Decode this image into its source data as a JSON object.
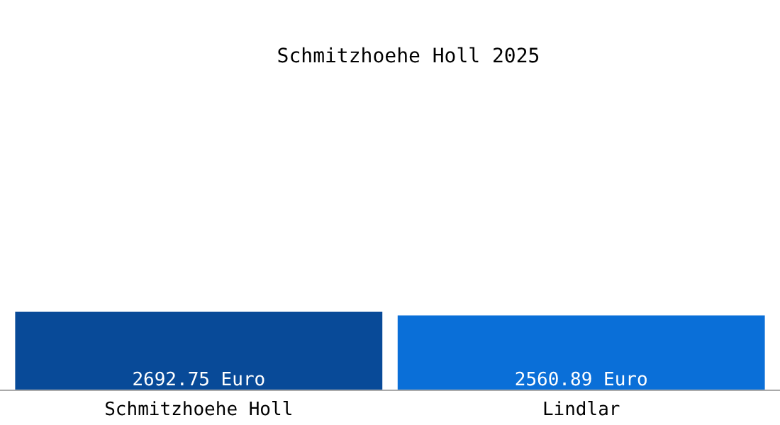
{
  "chart_data": {
    "type": "bar",
    "title": "Schmitzhoehe Holl 2025",
    "categories": [
      "Schmitzhoehe Holl",
      "Lindlar"
    ],
    "values": [
      2692.75,
      2560.89
    ],
    "value_labels": [
      "2692.75 Euro",
      "2560.89 Euro"
    ],
    "colors": [
      "#084a98",
      "#0a6fd8"
    ],
    "grid": false
  }
}
